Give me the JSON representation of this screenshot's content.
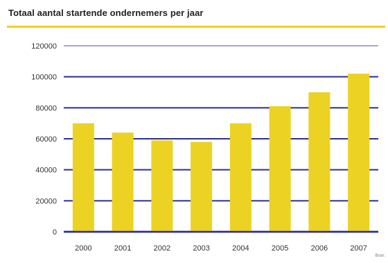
{
  "chart_data": {
    "type": "bar",
    "title": "Totaal aantal startende ondernemers per jaar",
    "categories": [
      "2000",
      "2001",
      "2002",
      "2003",
      "2004",
      "2005",
      "2006",
      "2007"
    ],
    "values": [
      70000,
      64000,
      59000,
      58000,
      70000,
      81000,
      90000,
      102000
    ],
    "ylim": [
      0,
      120000
    ],
    "yticks": [
      "0",
      "20000",
      "40000",
      "60000",
      "80000",
      "100000",
      "120000"
    ],
    "xlabel": "",
    "ylabel": "",
    "grid": true,
    "colors": {
      "bar": "#ecd223",
      "grid": "#2b2f8f",
      "top_grid": "#a7a9d6",
      "title_rule": "#f0d21f"
    },
    "source": "Bron:"
  }
}
